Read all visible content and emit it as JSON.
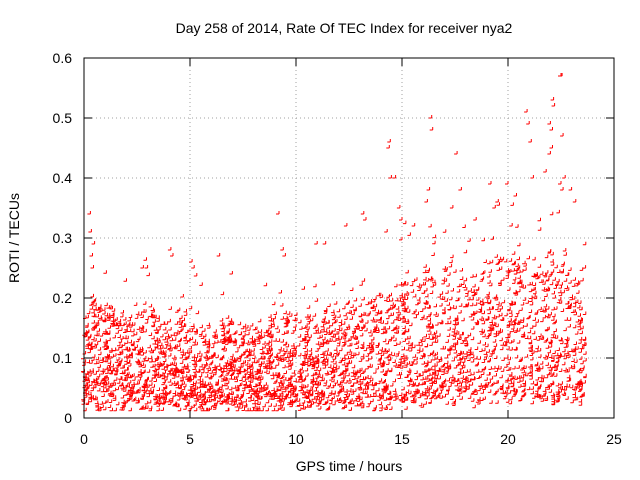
{
  "chart_data": {
    "type": "scatter",
    "title": "Day 258 of 2014, Rate Of TEC Index for receiver nya2",
    "xlabel": "GPS time / hours",
    "ylabel": "ROTI / TECUs",
    "xlim": [
      0,
      25
    ],
    "ylim": [
      0,
      0.6
    ],
    "xticks": [
      0,
      5,
      10,
      15,
      20,
      25
    ],
    "xtick_labels": [
      "0",
      "5",
      "10",
      "15",
      "20",
      "25"
    ],
    "yticks": [
      0,
      0.1,
      0.2,
      0.3,
      0.4,
      0.5,
      0.6
    ],
    "ytick_labels": [
      "0",
      "0.1",
      "0.2",
      "0.3",
      "0.4",
      "0.5",
      "0.6"
    ],
    "grid": true,
    "marker": "+",
    "color": "#ff0000",
    "x_data_range": [
      0,
      23.7
    ],
    "profile": [
      [
        0.0,
        0.08
      ],
      [
        0.5,
        0.1
      ],
      [
        1.0,
        0.09
      ],
      [
        2.0,
        0.08
      ],
      [
        3.0,
        0.09
      ],
      [
        4.0,
        0.08
      ],
      [
        5.0,
        0.09
      ],
      [
        6.0,
        0.07
      ],
      [
        7.0,
        0.08
      ],
      [
        8.0,
        0.07
      ],
      [
        9.0,
        0.08
      ],
      [
        10.0,
        0.09
      ],
      [
        11.0,
        0.08
      ],
      [
        12.0,
        0.09
      ],
      [
        13.0,
        0.1
      ],
      [
        14.0,
        0.1
      ],
      [
        15.0,
        0.11
      ],
      [
        16.0,
        0.12
      ],
      [
        17.0,
        0.12
      ],
      [
        18.0,
        0.12
      ],
      [
        19.0,
        0.13
      ],
      [
        20.0,
        0.13
      ],
      [
        21.0,
        0.13
      ],
      [
        22.0,
        0.14
      ],
      [
        23.0,
        0.13
      ],
      [
        23.7,
        0.12
      ]
    ],
    "points": [
      {
        "x": 0.3,
        "y": 0.34
      },
      {
        "x": 0.35,
        "y": 0.31
      },
      {
        "x": 0.4,
        "y": 0.27
      },
      {
        "x": 0.45,
        "y": 0.25
      },
      {
        "x": 0.5,
        "y": 0.29
      },
      {
        "x": 2.8,
        "y": 0.25
      },
      {
        "x": 3.0,
        "y": 0.25
      },
      {
        "x": 4.1,
        "y": 0.28
      },
      {
        "x": 4.2,
        "y": 0.27
      },
      {
        "x": 5.1,
        "y": 0.26
      },
      {
        "x": 5.2,
        "y": 0.25
      },
      {
        "x": 6.4,
        "y": 0.27
      },
      {
        "x": 7.0,
        "y": 0.24
      },
      {
        "x": 9.2,
        "y": 0.34
      },
      {
        "x": 9.4,
        "y": 0.28
      },
      {
        "x": 9.5,
        "y": 0.27
      },
      {
        "x": 11.0,
        "y": 0.29
      },
      {
        "x": 11.4,
        "y": 0.29
      },
      {
        "x": 12.4,
        "y": 0.32
      },
      {
        "x": 13.2,
        "y": 0.34
      },
      {
        "x": 13.3,
        "y": 0.33
      },
      {
        "x": 14.3,
        "y": 0.31
      },
      {
        "x": 14.4,
        "y": 0.45
      },
      {
        "x": 14.45,
        "y": 0.46
      },
      {
        "x": 14.5,
        "y": 0.4
      },
      {
        "x": 14.7,
        "y": 0.4
      },
      {
        "x": 14.9,
        "y": 0.35
      },
      {
        "x": 15.0,
        "y": 0.33
      },
      {
        "x": 15.6,
        "y": 0.32
      },
      {
        "x": 16.4,
        "y": 0.5
      },
      {
        "x": 16.45,
        "y": 0.48
      },
      {
        "x": 16.3,
        "y": 0.38
      },
      {
        "x": 16.2,
        "y": 0.36
      },
      {
        "x": 17.6,
        "y": 0.44
      },
      {
        "x": 17.8,
        "y": 0.38
      },
      {
        "x": 17.4,
        "y": 0.35
      },
      {
        "x": 18.5,
        "y": 0.33
      },
      {
        "x": 19.2,
        "y": 0.39
      },
      {
        "x": 19.4,
        "y": 0.35
      },
      {
        "x": 20.0,
        "y": 0.39
      },
      {
        "x": 20.2,
        "y": 0.32
      },
      {
        "x": 20.4,
        "y": 0.37
      },
      {
        "x": 20.9,
        "y": 0.51
      },
      {
        "x": 21.0,
        "y": 0.49
      },
      {
        "x": 21.1,
        "y": 0.46
      },
      {
        "x": 21.2,
        "y": 0.4
      },
      {
        "x": 22.0,
        "y": 0.49
      },
      {
        "x": 22.1,
        "y": 0.48
      },
      {
        "x": 22.15,
        "y": 0.53
      },
      {
        "x": 22.2,
        "y": 0.52
      },
      {
        "x": 22.0,
        "y": 0.44
      },
      {
        "x": 22.1,
        "y": 0.45
      },
      {
        "x": 22.5,
        "y": 0.57
      },
      {
        "x": 22.55,
        "y": 0.57
      },
      {
        "x": 22.6,
        "y": 0.47
      },
      {
        "x": 22.5,
        "y": 0.39
      },
      {
        "x": 22.6,
        "y": 0.38
      },
      {
        "x": 22.7,
        "y": 0.4
      },
      {
        "x": 21.8,
        "y": 0.41
      },
      {
        "x": 23.2,
        "y": 0.36
      },
      {
        "x": 23.0,
        "y": 0.38
      }
    ]
  }
}
